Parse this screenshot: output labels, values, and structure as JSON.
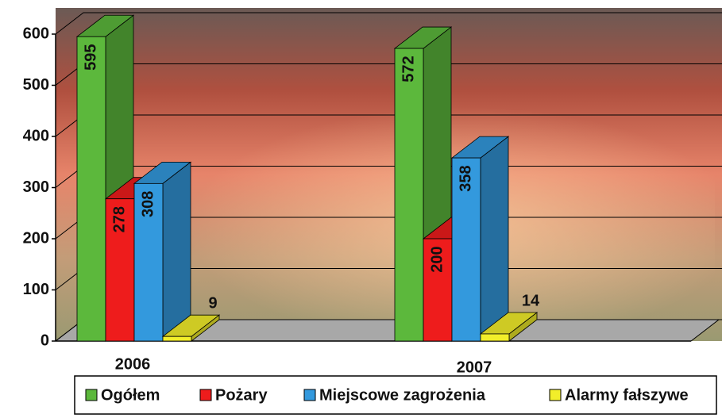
{
  "chart_data": {
    "type": "bar3d",
    "categories": [
      "2006",
      "2007"
    ],
    "series": [
      {
        "name": "Ogółem",
        "color": "#5cb83c",
        "values": [
          595,
          572
        ]
      },
      {
        "name": "Pożary",
        "color": "#ee1c1c",
        "values": [
          278,
          200
        ]
      },
      {
        "name": "Miejscowe zagrożenia",
        "color": "#3399dd",
        "values": [
          308,
          358
        ]
      },
      {
        "name": "Alarmy fałszywe",
        "color": "#f2ee2a",
        "values": [
          9,
          14
        ]
      }
    ],
    "ylim": [
      0,
      600
    ],
    "yticks": [
      0,
      100,
      200,
      300,
      400,
      500,
      600
    ],
    "grid": true,
    "legend": "bottom"
  }
}
